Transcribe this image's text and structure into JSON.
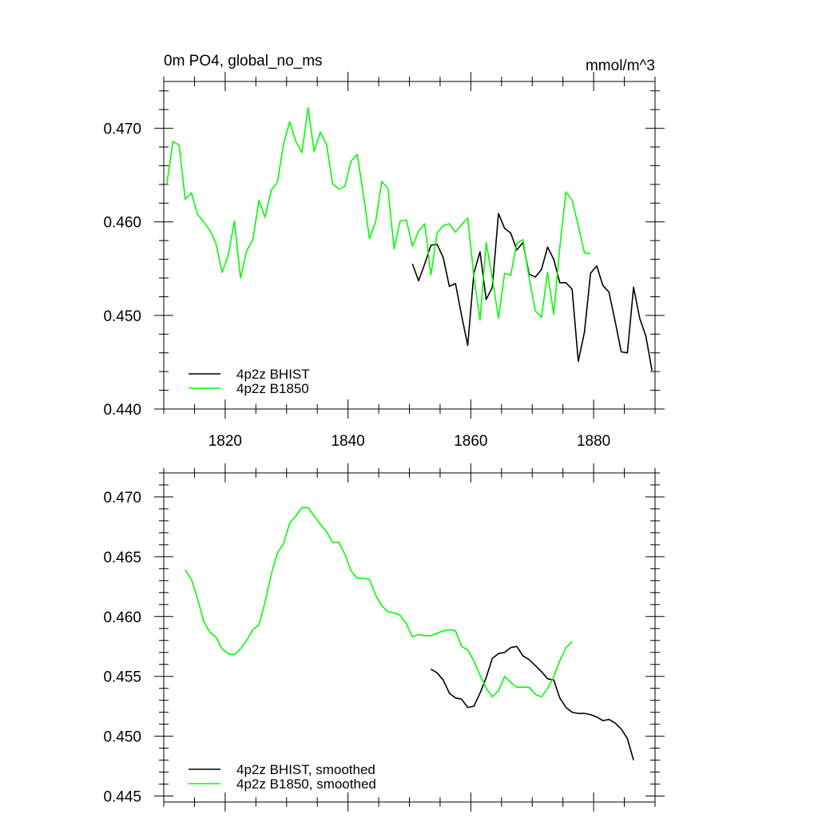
{
  "chart_data": [
    {
      "type": "line",
      "title": "0m PO4, global_no_ms",
      "units": "mmol/m^3",
      "xlim": [
        1810,
        1890
      ],
      "ylim": [
        0.44,
        0.475
      ],
      "xticks": [
        1820,
        1840,
        1860,
        1880
      ],
      "xtick_labels": [
        "1820",
        "1840",
        "1860",
        "1880"
      ],
      "yticks": [
        0.44,
        0.45,
        0.46,
        0.47
      ],
      "ytick_labels": [
        "0.440",
        "0.450",
        "0.460",
        "0.470"
      ],
      "legend": "bottom-left",
      "grid": false,
      "series": [
        {
          "name": "4p2z BHIST",
          "color": "#000000",
          "x": [
            1850.5,
            1851.5,
            1852.5,
            1853.5,
            1854.5,
            1855.5,
            1856.5,
            1857.5,
            1858.5,
            1859.5,
            1860.5,
            1861.5,
            1862.5,
            1863.5,
            1864.5,
            1865.5,
            1866.5,
            1867.5,
            1868.5,
            1869.5,
            1870.5,
            1871.5,
            1872.5,
            1873.5,
            1874.5,
            1875.5,
            1876.5,
            1877.5,
            1878.5,
            1879.5,
            1880.5,
            1881.5,
            1882.5,
            1883.5,
            1884.5,
            1885.5,
            1886.5,
            1887.5,
            1888.5,
            1889.5
          ],
          "y": [
            0.4555,
            0.4537,
            0.4555,
            0.4575,
            0.4576,
            0.4562,
            0.4531,
            0.4534,
            0.45,
            0.4468,
            0.4545,
            0.4568,
            0.4517,
            0.453,
            0.4609,
            0.4593,
            0.4588,
            0.457,
            0.4578,
            0.4544,
            0.4541,
            0.4549,
            0.4573,
            0.456,
            0.4535,
            0.4535,
            0.4528,
            0.4451,
            0.4482,
            0.4545,
            0.4553,
            0.4532,
            0.4525,
            0.4494,
            0.4461,
            0.446,
            0.453,
            0.4497,
            0.4478,
            0.4441
          ]
        },
        {
          "name": "4p2z B1850",
          "color": "#00ff00",
          "x": [
            1810.5,
            1811.5,
            1812.5,
            1813.5,
            1814.5,
            1815.5,
            1816.5,
            1817.5,
            1818.5,
            1819.5,
            1820.5,
            1821.5,
            1822.5,
            1823.5,
            1824.5,
            1825.5,
            1826.5,
            1827.5,
            1828.5,
            1829.5,
            1830.5,
            1831.5,
            1832.5,
            1833.5,
            1834.5,
            1835.5,
            1836.5,
            1837.5,
            1838.5,
            1839.5,
            1840.5,
            1841.5,
            1842.5,
            1843.5,
            1844.5,
            1845.5,
            1846.5,
            1847.5,
            1848.5,
            1849.5,
            1850.5,
            1851.5,
            1852.5,
            1853.5,
            1854.5,
            1855.5,
            1856.5,
            1857.5,
            1858.5,
            1859.5,
            1860.5,
            1861.5,
            1862.5,
            1863.5,
            1864.5,
            1865.5,
            1866.5,
            1867.5,
            1868.5,
            1869.5,
            1870.5,
            1871.5,
            1872.5,
            1873.5,
            1874.5,
            1875.5,
            1876.5,
            1877.5,
            1878.5,
            1879.5
          ],
          "y": [
            0.464,
            0.4686,
            0.4682,
            0.4624,
            0.4631,
            0.4608,
            0.46,
            0.4591,
            0.4577,
            0.4546,
            0.4564,
            0.4601,
            0.454,
            0.4569,
            0.4581,
            0.4623,
            0.4605,
            0.4634,
            0.4642,
            0.4683,
            0.4707,
            0.4686,
            0.4674,
            0.4722,
            0.4675,
            0.4696,
            0.4683,
            0.4641,
            0.4635,
            0.4638,
            0.4665,
            0.4672,
            0.463,
            0.4582,
            0.46,
            0.4643,
            0.4636,
            0.4571,
            0.4601,
            0.4602,
            0.4574,
            0.459,
            0.4598,
            0.4543,
            0.4588,
            0.4596,
            0.4598,
            0.4589,
            0.4597,
            0.4604,
            0.4542,
            0.4495,
            0.4578,
            0.454,
            0.4497,
            0.4545,
            0.4543,
            0.4577,
            0.4581,
            0.454,
            0.4505,
            0.4498,
            0.4546,
            0.4501,
            0.4573,
            0.4632,
            0.4623,
            0.4596,
            0.4567,
            0.4566
          ]
        }
      ]
    },
    {
      "type": "line",
      "xlim": [
        1810,
        1890
      ],
      "ylim": [
        0.4445,
        0.472
      ],
      "xticks": [
        1820,
        1840,
        1860,
        1880
      ],
      "yticks": [
        0.445,
        0.45,
        0.455,
        0.46,
        0.465,
        0.47
      ],
      "ytick_labels": [
        "0.445",
        "0.450",
        "0.455",
        "0.460",
        "0.465",
        "0.470"
      ],
      "legend": "bottom-left",
      "grid": false,
      "series": [
        {
          "name": "4p2z BHIST, smoothed",
          "color": "#000000",
          "x": [
            1853.5,
            1854.5,
            1855.5,
            1856.5,
            1857.5,
            1858.5,
            1859.5,
            1860.5,
            1861.5,
            1862.5,
            1863.5,
            1864.5,
            1865.5,
            1866.5,
            1867.5,
            1868.5,
            1869.5,
            1870.5,
            1871.5,
            1872.5,
            1873.5,
            1874.5,
            1875.5,
            1876.5,
            1877.5,
            1878.5,
            1879.5,
            1880.5,
            1881.5,
            1882.5,
            1883.5,
            1884.5,
            1885.5,
            1886.5
          ],
          "y": [
            0.4556,
            0.4553,
            0.4547,
            0.4536,
            0.4532,
            0.4531,
            0.4524,
            0.4525,
            0.4536,
            0.4549,
            0.4565,
            0.4569,
            0.457,
            0.4574,
            0.4575,
            0.4567,
            0.4564,
            0.4559,
            0.4554,
            0.4548,
            0.4547,
            0.4532,
            0.4524,
            0.452,
            0.4519,
            0.4519,
            0.4518,
            0.4516,
            0.4513,
            0.4514,
            0.4511,
            0.4506,
            0.4498,
            0.448
          ]
        },
        {
          "name": "4p2z B1850, smoothed",
          "color": "#00ff00",
          "x": [
            1813.5,
            1814.5,
            1815.5,
            1816.5,
            1817.5,
            1818.5,
            1819.5,
            1820.5,
            1821.5,
            1822.5,
            1823.5,
            1824.5,
            1825.5,
            1826.5,
            1827.5,
            1828.5,
            1829.5,
            1830.5,
            1831.5,
            1832.5,
            1833.5,
            1834.5,
            1835.5,
            1836.5,
            1837.5,
            1838.5,
            1839.5,
            1840.5,
            1841.5,
            1842.5,
            1843.5,
            1844.5,
            1845.5,
            1846.5,
            1847.5,
            1848.5,
            1849.5,
            1850.5,
            1851.5,
            1852.5,
            1853.5,
            1854.5,
            1855.5,
            1856.5,
            1857.5,
            1858.5,
            1859.5,
            1860.5,
            1861.5,
            1862.5,
            1863.5,
            1864.5,
            1865.5,
            1866.5,
            1867.5,
            1868.5,
            1869.5,
            1870.5,
            1871.5,
            1872.5,
            1873.5,
            1874.5,
            1875.5,
            1876.5
          ],
          "y": [
            0.4639,
            0.4631,
            0.4615,
            0.4596,
            0.4587,
            0.4583,
            0.4573,
            0.4569,
            0.4568,
            0.4573,
            0.458,
            0.4589,
            0.4593,
            0.4612,
            0.4635,
            0.4653,
            0.4661,
            0.4678,
            0.4684,
            0.4691,
            0.4691,
            0.4684,
            0.4677,
            0.4671,
            0.4662,
            0.4662,
            0.4652,
            0.4638,
            0.4632,
            0.4632,
            0.4631,
            0.4618,
            0.4609,
            0.4604,
            0.4603,
            0.4601,
            0.4594,
            0.4583,
            0.4585,
            0.4584,
            0.4584,
            0.4586,
            0.4588,
            0.4589,
            0.4588,
            0.4575,
            0.4572,
            0.4563,
            0.4551,
            0.454,
            0.4533,
            0.4538,
            0.455,
            0.4545,
            0.4541,
            0.4541,
            0.4541,
            0.4535,
            0.4533,
            0.454,
            0.455,
            0.4563,
            0.4574,
            0.4579
          ]
        }
      ]
    }
  ]
}
